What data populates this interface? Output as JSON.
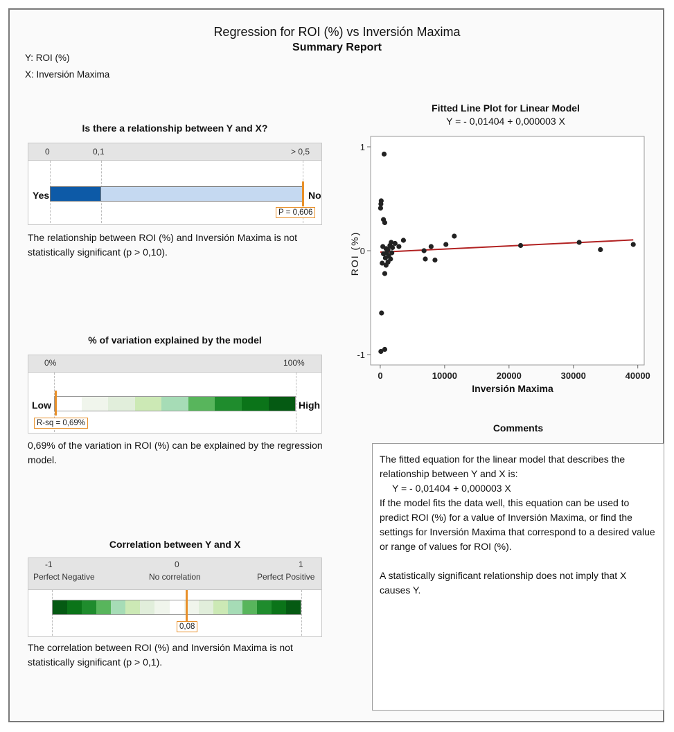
{
  "report": {
    "title": "Regression for ROI (%) vs Inversión Maxima",
    "subtitle": "Summary Report",
    "y_label": "Y: ROI (%)",
    "x_label": "X: Inversión Maxima"
  },
  "relationship": {
    "title": "Is there a relationship between Y and X?",
    "ticks": [
      "0",
      "0,1",
      "> 0,5"
    ],
    "left_label": "Yes",
    "right_label": "No",
    "p_label": "P = 0,606",
    "p_value": 0.606,
    "colors": {
      "significant": "#0d5aa7",
      "not_significant": "#c5d9f1"
    },
    "description": "The relationship between ROI (%) and Inversión Maxima is not statistically significant (p > 0,10)."
  },
  "variation": {
    "title": "% of variation explained by the model",
    "ticks": [
      "0%",
      "100%"
    ],
    "left_label": "Low",
    "right_label": "High",
    "rsq_label": "R-sq = 0,69%",
    "rsq_value": 0.0069,
    "gradient_colors": [
      "#ffffff",
      "#f0f5ec",
      "#e1eedb",
      "#cce9b5",
      "#a6dcb6",
      "#58b55c",
      "#1f8c2d",
      "#0b7419",
      "#055a13"
    ],
    "description": "0,69% of the variation in ROI (%) can be explained by the regression model."
  },
  "correlation": {
    "title": "Correlation between Y and X",
    "ticks": [
      "-1",
      "0",
      "1"
    ],
    "scale_labels": [
      "Perfect Negative",
      "No correlation",
      "Perfect Positive"
    ],
    "value_label": "0,08",
    "value": 0.08,
    "gradient_colors": [
      "#055a13",
      "#0b7419",
      "#1f8c2d",
      "#58b55c",
      "#a6dcb6",
      "#cce9b5",
      "#e1eedb",
      "#f0f5ec",
      "#ffffff",
      "#f0f5ec",
      "#e1eedb",
      "#cce9b5",
      "#a6dcb6",
      "#58b55c",
      "#1f8c2d",
      "#0b7419",
      "#055a13"
    ],
    "description": "The correlation between ROI (%) and Inversión Maxima is not statistically significant (p > 0,1)."
  },
  "chart_data": {
    "type": "scatter",
    "title": "Fitted Line Plot for Linear Model",
    "equation": "Y = - 0,01404 + 0,000003 X",
    "xlabel": "Inversión Maxima",
    "ylabel": "ROI (%)",
    "xlim": [
      -1500,
      41000
    ],
    "ylim": [
      -1.1,
      1.1
    ],
    "x_ticks": [
      0,
      10000,
      20000,
      30000,
      40000
    ],
    "x_tick_labels": [
      "0",
      "10000",
      "20000",
      "30000",
      "40000"
    ],
    "y_ticks": [
      -1,
      0,
      1
    ],
    "y_tick_labels": [
      "-1",
      "0",
      "1"
    ],
    "grid": false,
    "fit": {
      "intercept": -0.01404,
      "slope": 3e-06,
      "color": "#b22222"
    },
    "point_color": "#222222",
    "points": [
      {
        "x": 600,
        "y": 0.93
      },
      {
        "x": 150,
        "y": 0.48
      },
      {
        "x": 100,
        "y": 0.45
      },
      {
        "x": 50,
        "y": 0.41
      },
      {
        "x": 500,
        "y": 0.3
      },
      {
        "x": 700,
        "y": 0.27
      },
      {
        "x": 400,
        "y": 0.04
      },
      {
        "x": 900,
        "y": 0.02
      },
      {
        "x": 1200,
        "y": 0.01
      },
      {
        "x": 1500,
        "y": 0.05
      },
      {
        "x": 1700,
        "y": 0.08
      },
      {
        "x": 1900,
        "y": 0.03
      },
      {
        "x": 2300,
        "y": 0.07
      },
      {
        "x": 2900,
        "y": 0.04
      },
      {
        "x": 3600,
        "y": 0.1
      },
      {
        "x": 500,
        "y": -0.03
      },
      {
        "x": 800,
        "y": -0.07
      },
      {
        "x": 1000,
        "y": -0.02
      },
      {
        "x": 1300,
        "y": -0.05
      },
      {
        "x": 1600,
        "y": -0.08
      },
      {
        "x": 1800,
        "y": -0.02
      },
      {
        "x": 300,
        "y": -0.12
      },
      {
        "x": 900,
        "y": -0.14
      },
      {
        "x": 1200,
        "y": -0.11
      },
      {
        "x": 700,
        "y": -0.22
      },
      {
        "x": 200,
        "y": -0.6
      },
      {
        "x": 100,
        "y": -0.97
      },
      {
        "x": 700,
        "y": -0.95
      },
      {
        "x": 6800,
        "y": 0.0
      },
      {
        "x": 7000,
        "y": -0.08
      },
      {
        "x": 7900,
        "y": 0.04
      },
      {
        "x": 8500,
        "y": -0.09
      },
      {
        "x": 10200,
        "y": 0.06
      },
      {
        "x": 11500,
        "y": 0.14
      },
      {
        "x": 21800,
        "y": 0.05
      },
      {
        "x": 30900,
        "y": 0.08
      },
      {
        "x": 34200,
        "y": 0.01
      },
      {
        "x": 39300,
        "y": 0.06
      }
    ]
  },
  "comments": {
    "title": "Comments",
    "line1": "The fitted equation for the linear model that describes the relationship between Y and X is:",
    "equation": "Y = - 0,01404 + 0,000003 X",
    "line2": "If the model fits the data well, this equation can be used to predict ROI (%) for a value of Inversión Maxima, or find the settings for Inversión Maxima that correspond to a desired value or range of values for ROI (%).",
    "line3": "A statistically significant relationship does not imply that X causes Y."
  }
}
